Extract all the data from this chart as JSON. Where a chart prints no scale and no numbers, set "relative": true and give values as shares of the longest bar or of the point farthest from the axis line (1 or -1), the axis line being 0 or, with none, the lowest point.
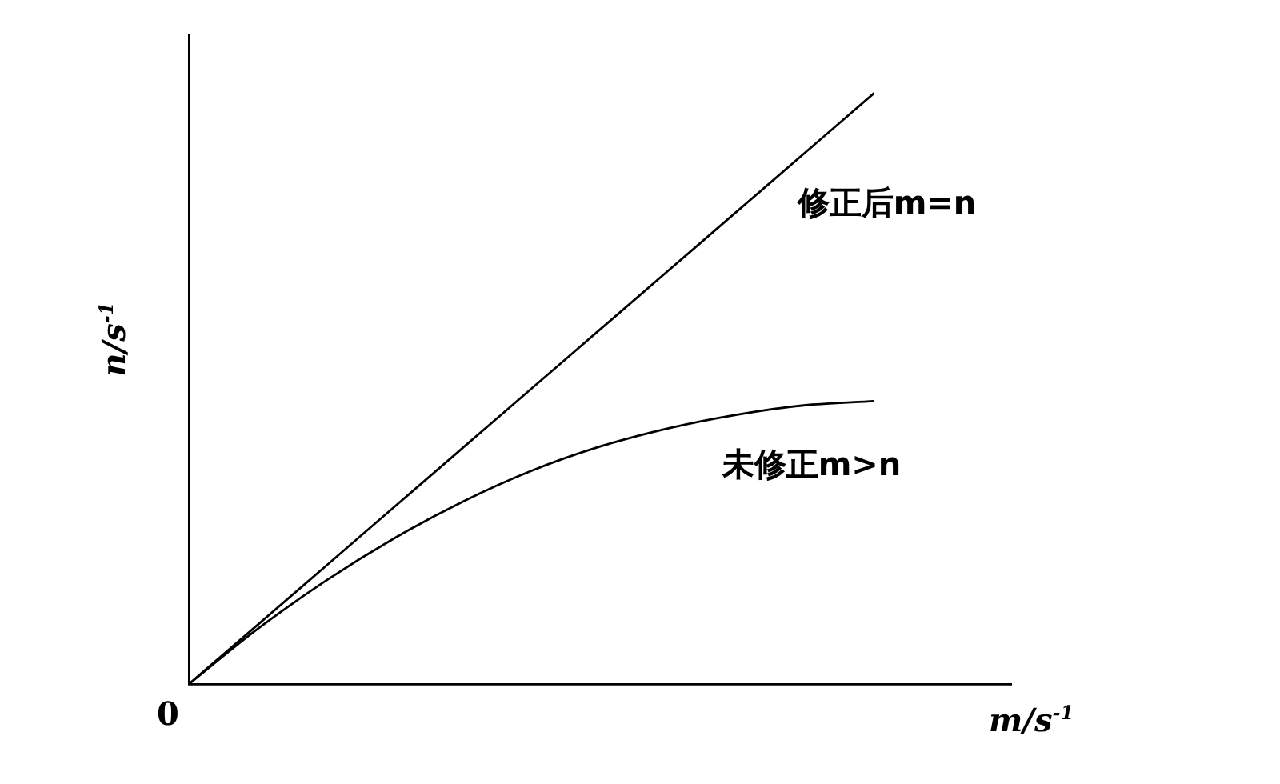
{
  "chart_data": {
    "type": "line",
    "relative": true,
    "xlabel": "m/s$^{-1}$",
    "ylabel": "n/s$^{-1}$",
    "annotations": [
      "0"
    ],
    "categories": [
      null,
      null,
      null,
      null,
      null,
      null,
      null,
      null,
      null,
      null,
      null,
      null,
      null
    ],
    "series": [
      {
        "name": "修正后m=n",
        "color": "#000000",
        "values": [
          0,
          0.1,
          0.2,
          0.3,
          0.4,
          0.5,
          0.6,
          0.7,
          0.8,
          0.9,
          1,
          null,
          null
        ]
      },
      {
        "name": "未修正m>n",
        "color": "#000000",
        "values": [
          0,
          0.093,
          0.175,
          0.247,
          0.309,
          0.361,
          0.402,
          0.433,
          0.456,
          0.472,
          0.479,
          null,
          null
        ]
      }
    ]
  }
}
